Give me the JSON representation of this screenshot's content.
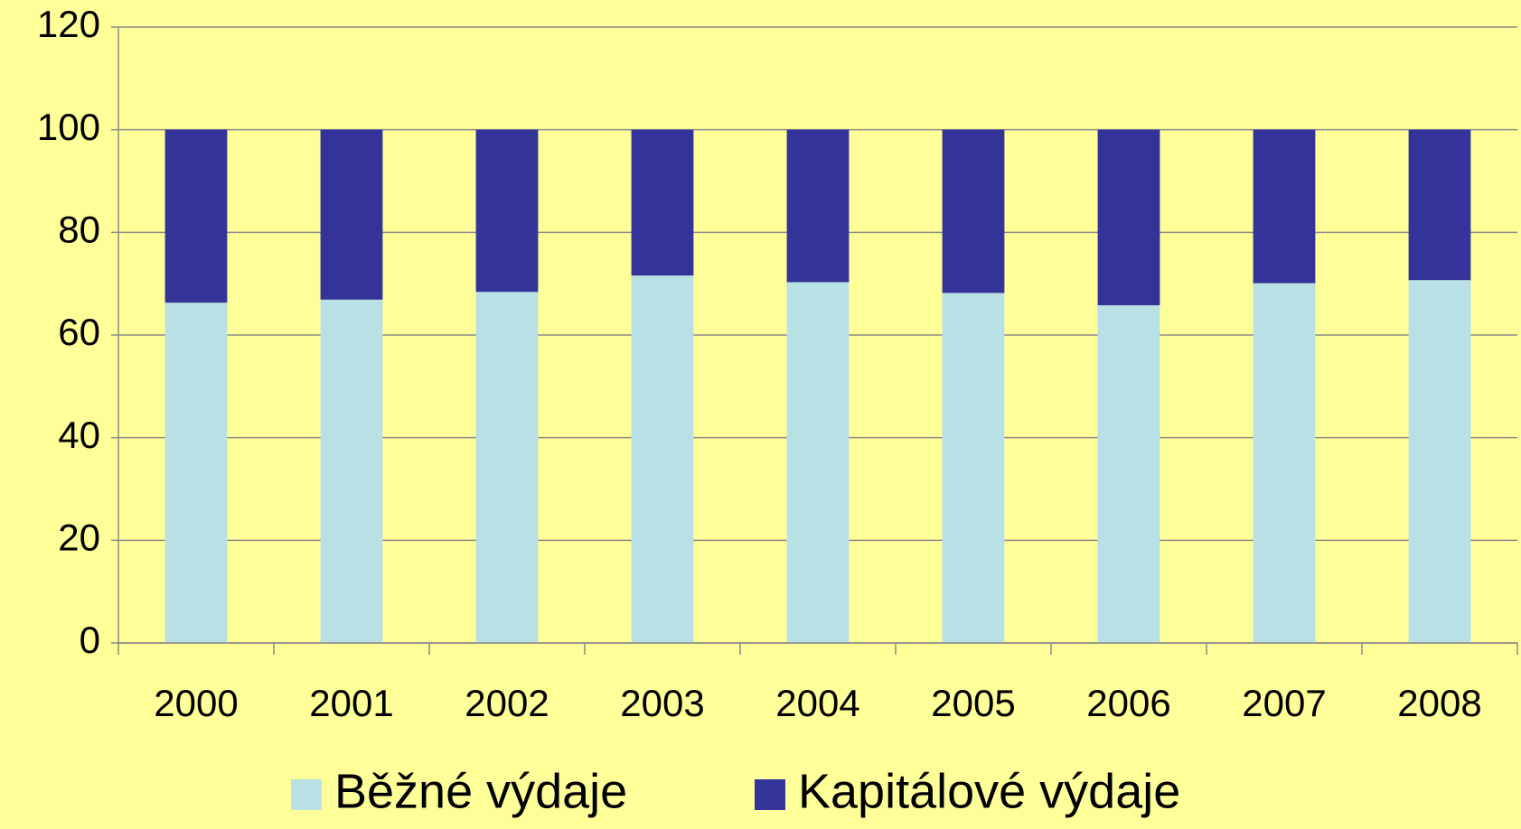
{
  "chart_data": {
    "type": "stacked_bar",
    "categories": [
      "2000",
      "2001",
      "2002",
      "2003",
      "2004",
      "2005",
      "2006",
      "2007",
      "2008"
    ],
    "series": [
      {
        "name": "Běžné výdaje",
        "color": "#b9e0e5",
        "values": [
          66.3,
          66.9,
          68.4,
          71.6,
          70.3,
          68.2,
          65.8,
          70.1,
          70.7
        ]
      },
      {
        "name": "Kapitálové výdaje",
        "color": "#333399",
        "values": [
          33.7,
          33.1,
          31.6,
          28.4,
          29.7,
          31.8,
          34.2,
          29.9,
          29.3
        ]
      }
    ],
    "ylim": [
      0,
      120
    ],
    "yticks": [
      0,
      20,
      40,
      60,
      80,
      100,
      120
    ],
    "grid": true,
    "legend": "bottom"
  }
}
